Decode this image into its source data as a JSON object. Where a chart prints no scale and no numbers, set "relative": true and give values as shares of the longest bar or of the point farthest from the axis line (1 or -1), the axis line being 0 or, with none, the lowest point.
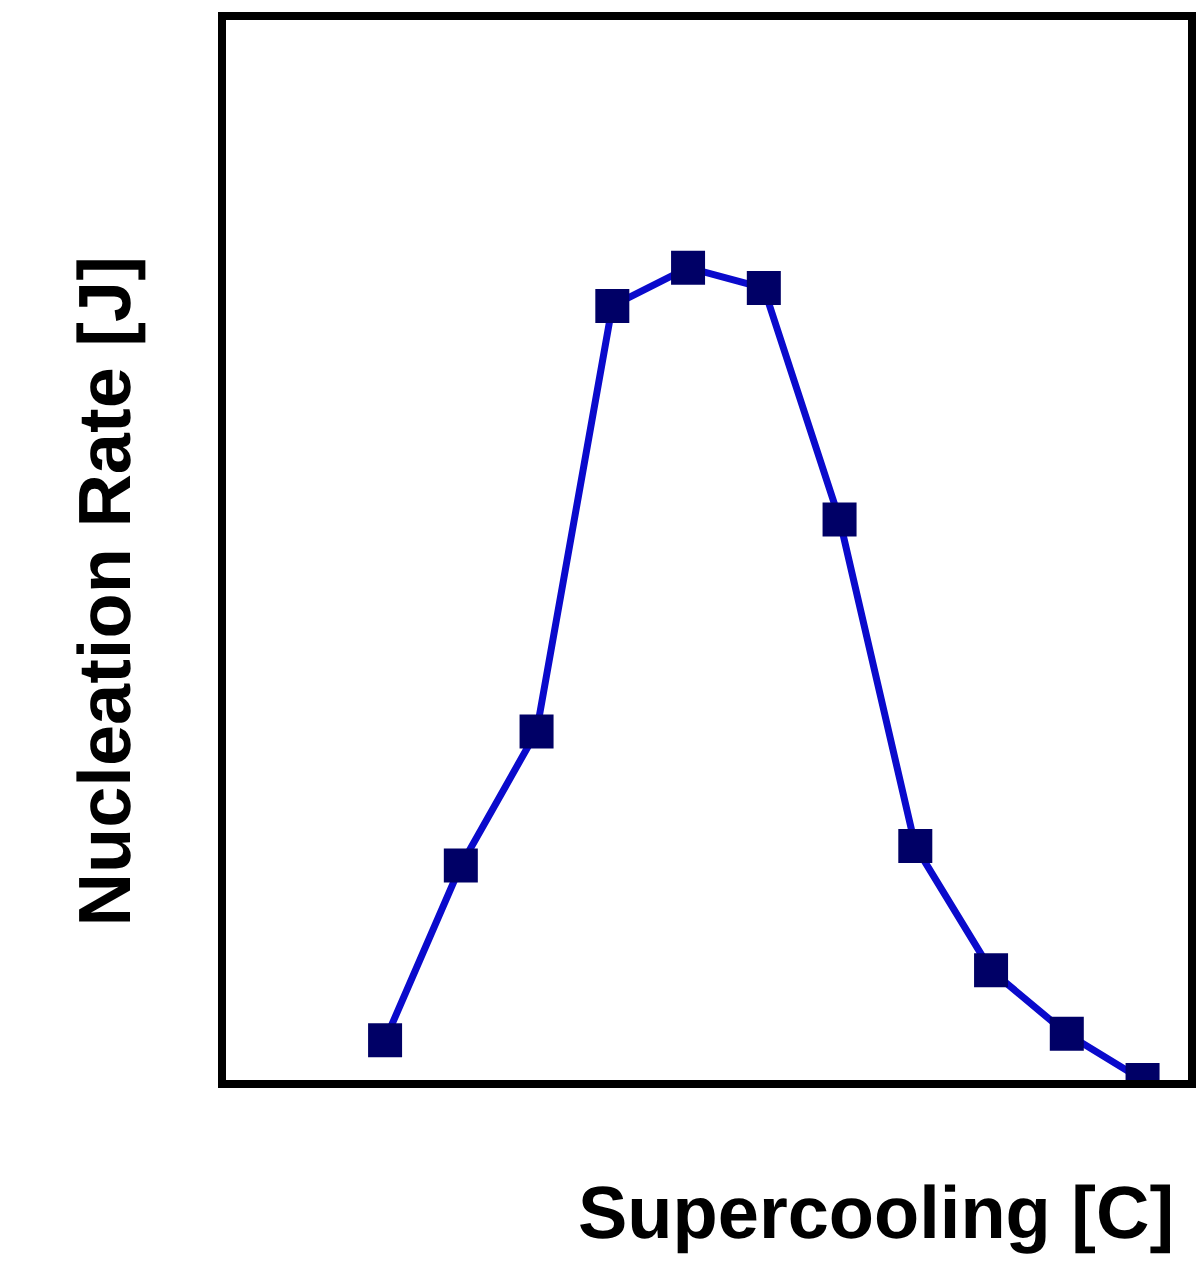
{
  "chart_data": {
    "type": "line",
    "relative": true,
    "xlabel": "Supercooling [C]",
    "ylabel": "Nucleation Rate [J]",
    "categories": [
      null,
      null,
      null,
      null,
      null,
      null,
      null,
      null,
      null,
      null,
      null
    ],
    "series": [
      {
        "color": "#0a0acc",
        "values": [
          0.049,
          0.264,
          0.429,
          0.953,
          1,
          0.975,
          0.69,
          0.288,
          0.135,
          0.057,
          0
        ]
      }
    ],
    "marker": "square",
    "line_style": "solid"
  }
}
